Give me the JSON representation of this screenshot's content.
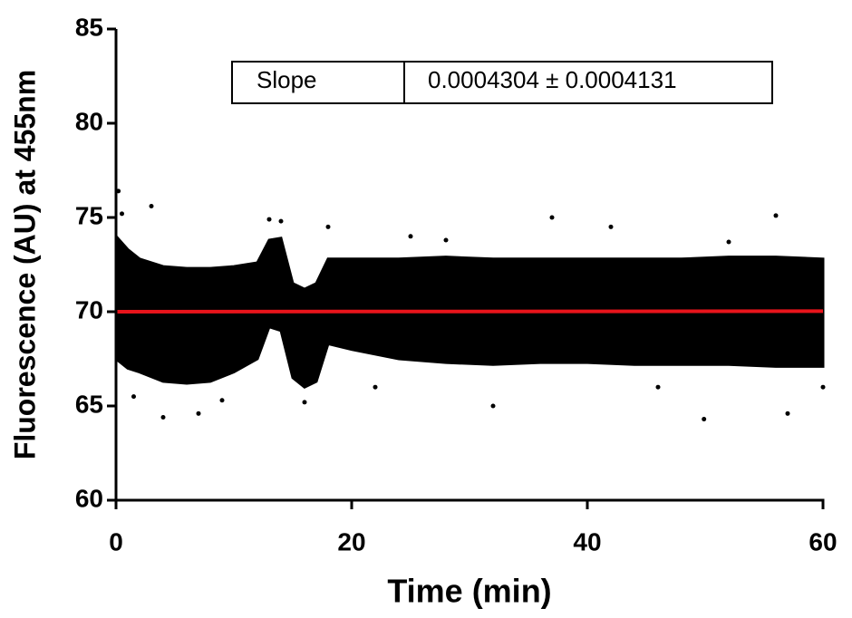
{
  "chart_data": {
    "type": "scatter",
    "x_label": "Time (min)",
    "y_label": "Fluorescence (AU) at 455nm",
    "xlim": [
      0,
      60
    ],
    "xticks": [
      0,
      20,
      40,
      60
    ],
    "ylim": [
      60,
      85
    ],
    "yticks": [
      60,
      65,
      70,
      75,
      80,
      85
    ],
    "color": "#000000",
    "band": {
      "x": [
        0,
        1,
        2,
        4,
        6,
        8,
        10,
        12,
        13,
        14,
        15,
        16,
        17,
        18,
        20,
        24,
        28,
        32,
        36,
        40,
        44,
        48,
        52,
        56,
        60
      ],
      "low": [
        67.5,
        67,
        66.8,
        66.3,
        66.2,
        66.3,
        66.8,
        67.5,
        69.2,
        69,
        66.5,
        66,
        66.3,
        68.3,
        68,
        67.5,
        67.3,
        67.2,
        67.3,
        67.3,
        67.2,
        67.2,
        67.2,
        67.1,
        67.1
      ],
      "high": [
        74,
        73.3,
        72.8,
        72.4,
        72.3,
        72.3,
        72.4,
        72.6,
        73.8,
        73.9,
        71.5,
        71.2,
        71.5,
        72.8,
        72.8,
        72.8,
        72.9,
        72.8,
        72.8,
        72.8,
        72.8,
        72.8,
        72.9,
        72.9,
        72.8
      ]
    },
    "points": {
      "x": [
        0.2,
        0.5,
        3,
        4,
        7,
        13,
        14,
        16,
        18,
        25,
        32,
        37,
        42,
        49.9,
        56,
        57,
        60,
        1.5,
        9,
        22,
        28,
        46,
        52
      ],
      "y": [
        76.4,
        75.2,
        75.6,
        64.4,
        64.6,
        74.9,
        74.8,
        65.2,
        74.5,
        74,
        65,
        75,
        74.5,
        64.3,
        75.1,
        64.6,
        66,
        65.5,
        65.3,
        66,
        73.8,
        66,
        73.7
      ]
    },
    "fit": {
      "x": [
        0,
        60
      ],
      "y": [
        70.0,
        70.03
      ],
      "color": "#e8141b"
    },
    "annotation": {
      "label": "Slope",
      "value": "0.0004304 ± 0.0004131"
    }
  }
}
